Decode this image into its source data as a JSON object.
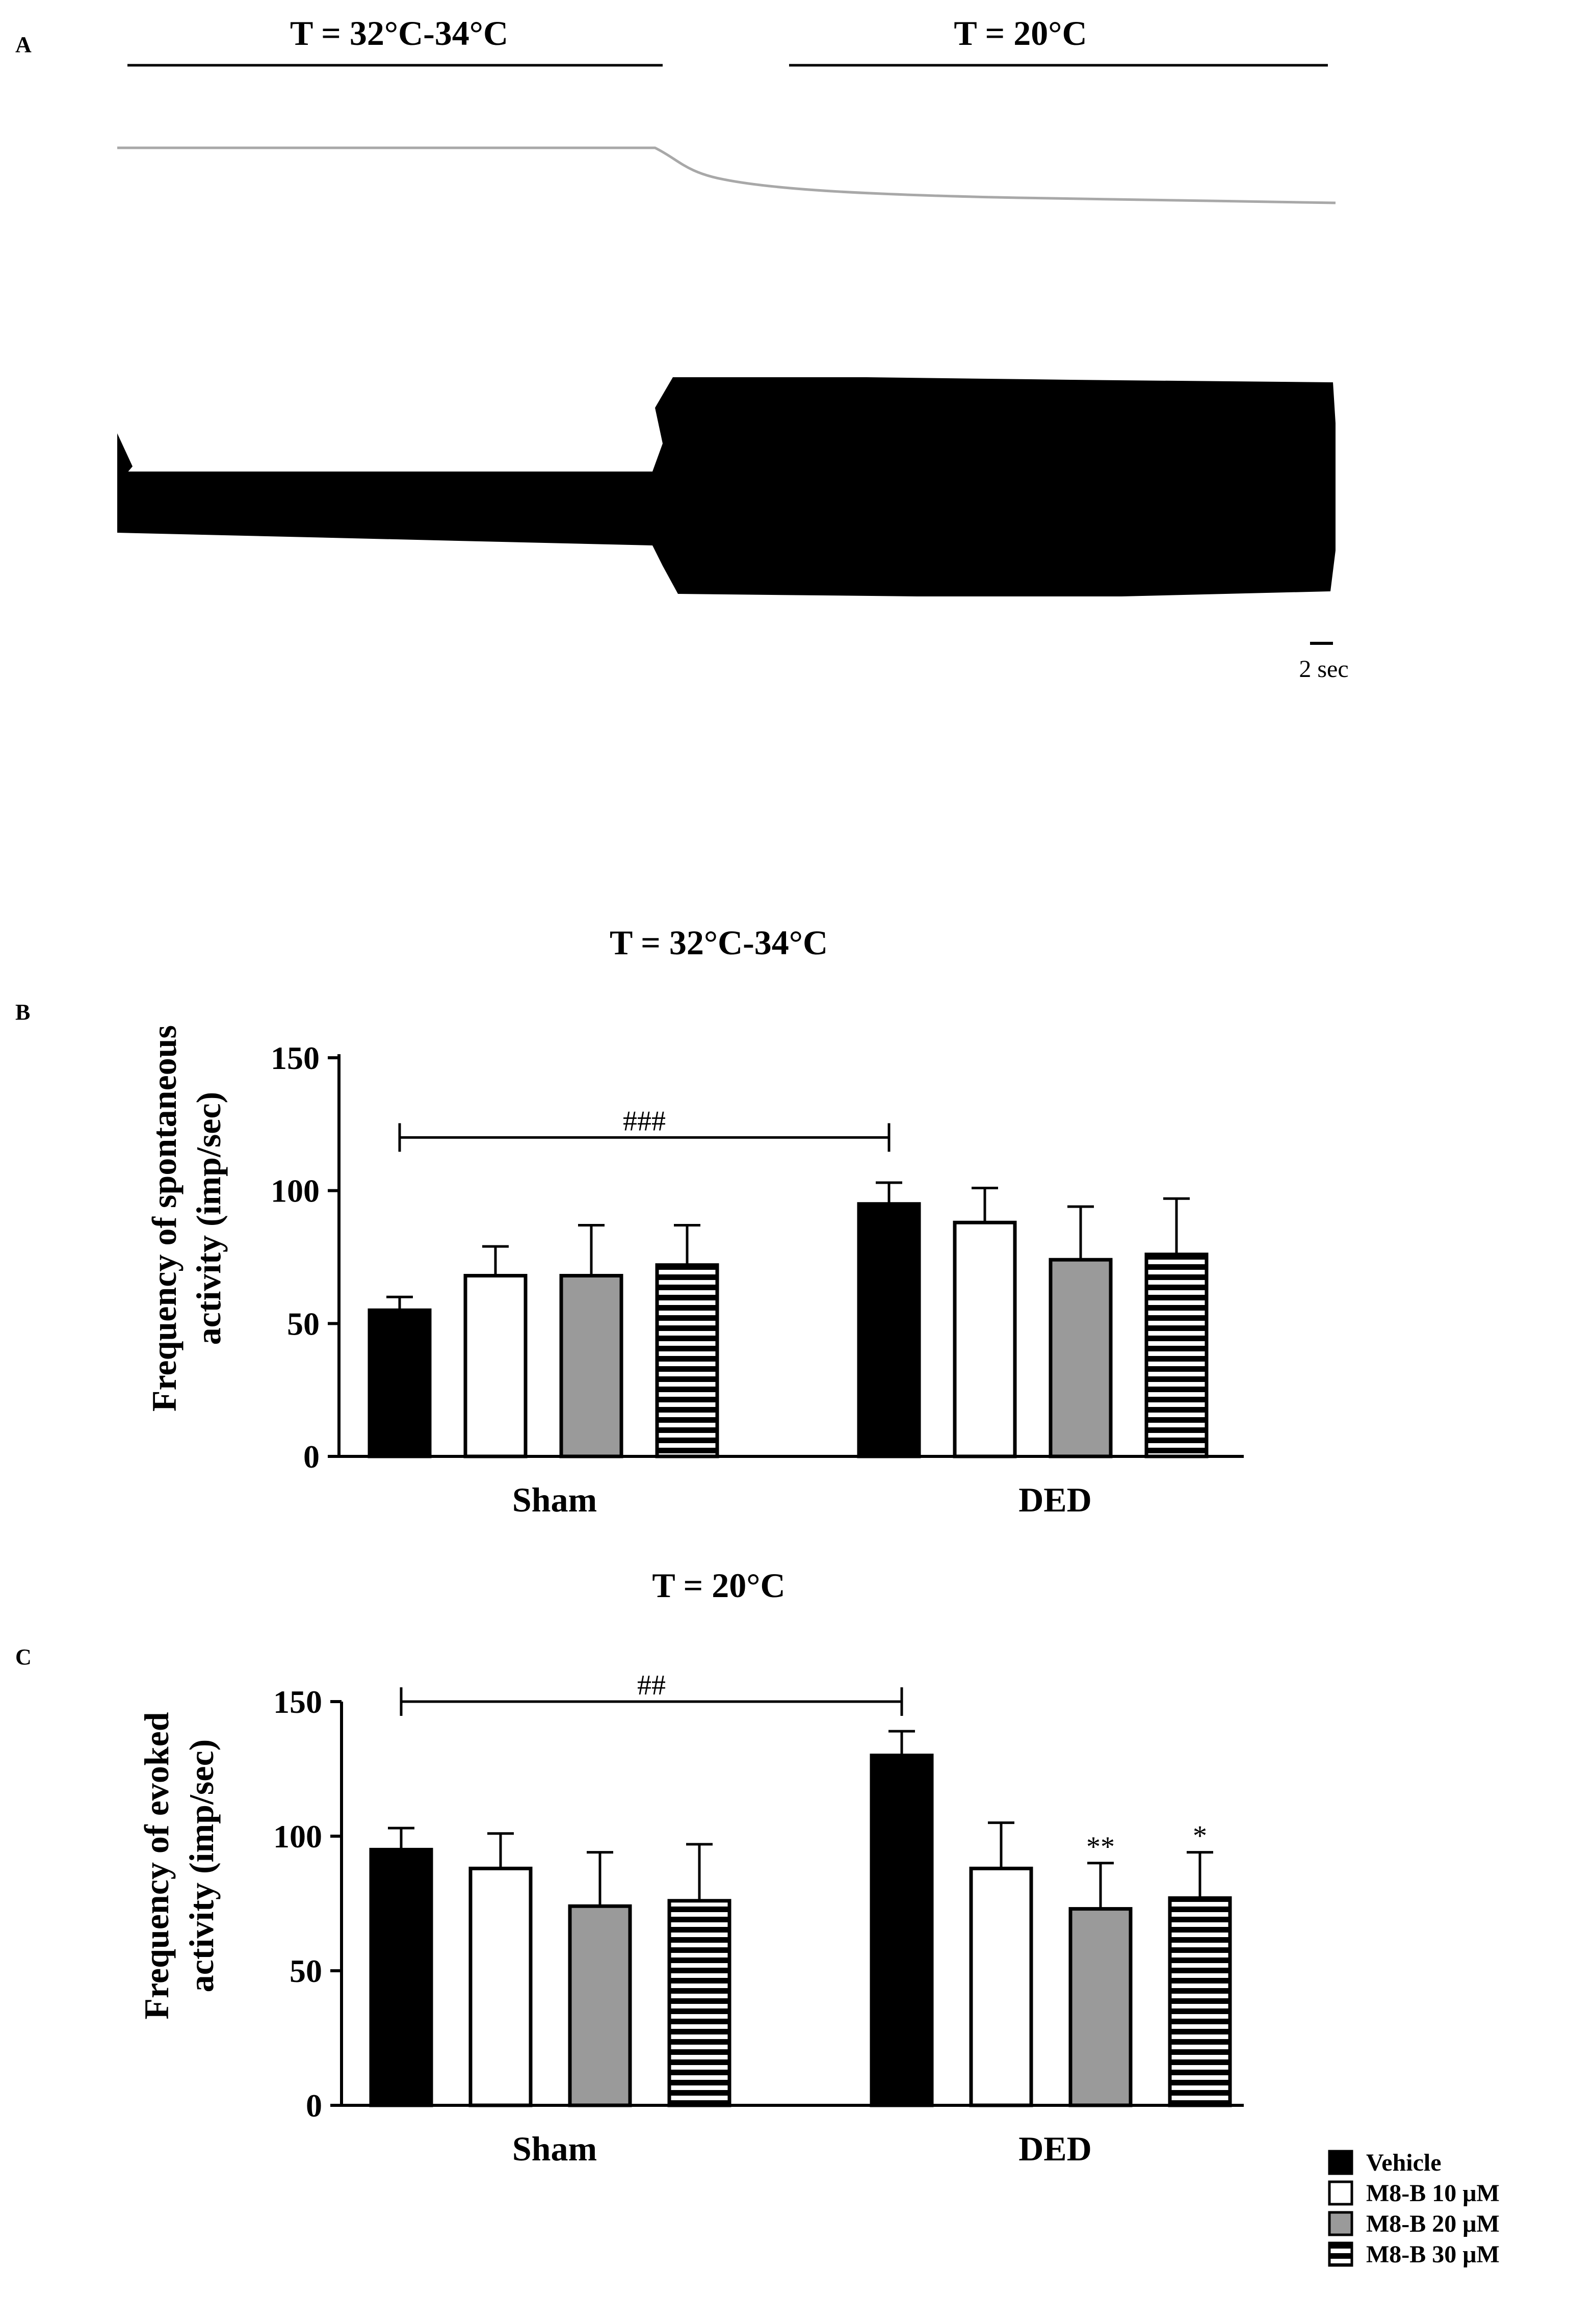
{
  "chart_data": [
    {
      "type": "trace",
      "panel": "A",
      "segments": [
        {
          "label": "T = 32°C-34°C"
        },
        {
          "label": "T = 20°C"
        }
      ],
      "scale_bar": {
        "label": "2 sec",
        "value": 2,
        "unit": "sec"
      }
    },
    {
      "type": "bar",
      "panel": "B",
      "title": "T = 32°C-34°C",
      "ylabel": "Frequency of spontaneous activity (imp/sec)",
      "ylabel_lines": [
        "Frequency of spontaneous",
        "activity (imp/sec)"
      ],
      "ylim": [
        0,
        150
      ],
      "yticks": [
        0,
        50,
        100,
        150
      ],
      "categories": [
        "Sham",
        "DED"
      ],
      "series": [
        {
          "name": "Vehicle",
          "values": [
            55,
            95
          ],
          "errors": [
            5,
            8
          ]
        },
        {
          "name": "M8-B 10 μM",
          "values": [
            68,
            88
          ],
          "errors": [
            11,
            13
          ]
        },
        {
          "name": "M8-B 20 μM",
          "values": [
            68,
            74
          ],
          "errors": [
            19,
            20
          ]
        },
        {
          "name": "M8-B 30 μM",
          "values": [
            72,
            76
          ],
          "errors": [
            15,
            21
          ]
        }
      ],
      "comparisons": [
        {
          "label": "###",
          "from": [
            0,
            0
          ],
          "to": [
            1,
            0
          ],
          "y": 120
        }
      ],
      "annotations": []
    },
    {
      "type": "bar",
      "panel": "C",
      "title": "T = 20°C",
      "ylabel": "Frequency of evoked activity (imp/sec)",
      "ylabel_lines": [
        "Frequency of evoked",
        "activity (imp/sec)"
      ],
      "ylim": [
        0,
        150
      ],
      "yticks": [
        0,
        50,
        100,
        150
      ],
      "categories": [
        "Sham",
        "DED"
      ],
      "series": [
        {
          "name": "Vehicle",
          "values": [
            95,
            130
          ],
          "errors": [
            8,
            9
          ]
        },
        {
          "name": "M8-B 10 μM",
          "values": [
            88,
            88
          ],
          "errors": [
            13,
            17
          ]
        },
        {
          "name": "M8-B 20 μM",
          "values": [
            74,
            73
          ],
          "errors": [
            20,
            17
          ]
        },
        {
          "name": "M8-B 30 μM",
          "values": [
            76,
            77
          ],
          "errors": [
            21,
            17
          ]
        }
      ],
      "comparisons": [
        {
          "label": "##",
          "from": [
            0,
            0
          ],
          "to": [
            1,
            0
          ],
          "y": 150
        }
      ],
      "annotations": [
        {
          "label": "**",
          "category": 1,
          "series": 2
        },
        {
          "label": "*",
          "category": 1,
          "series": 3
        }
      ]
    }
  ],
  "legend": {
    "items": [
      {
        "label": "Vehicle",
        "style": "solid-black"
      },
      {
        "label": "M8-B 10 μM",
        "style": "white"
      },
      {
        "label": "M8-B 20 μM",
        "style": "grey"
      },
      {
        "label": "M8-B 30 μM",
        "style": "striped"
      }
    ]
  },
  "colors": {
    "vehicle": "#000000",
    "m8b10": "#ffffff",
    "m8b20": "#9a9a9a",
    "m8b30": "#000000",
    "trace": "#000000",
    "temp_trace": "#a8a8a8"
  }
}
